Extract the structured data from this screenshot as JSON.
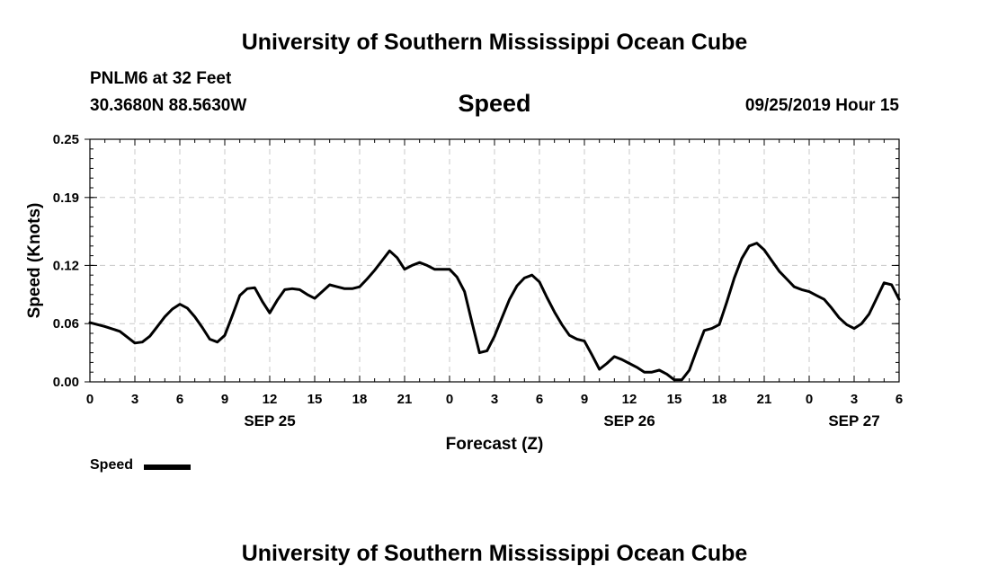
{
  "header": {
    "title": "University of Southern Mississippi Ocean Cube",
    "station": "PNLM6 at 32 Feet",
    "location": "30.3680N 88.5630W",
    "variable": "Speed",
    "timestamp": "09/25/2019 Hour 15"
  },
  "footer": {
    "title": "University of Southern Mississippi Ocean Cube"
  },
  "legend": {
    "label": "Speed",
    "color": "#000000"
  },
  "chart_data": {
    "type": "line",
    "title": "Speed",
    "xlabel": "Forecast (Z)",
    "ylabel": "Speed (Knots)",
    "xlim": [
      0,
      54
    ],
    "ylim": [
      0.0,
      0.25
    ],
    "grid": true,
    "x_ticks": [
      0,
      3,
      6,
      9,
      12,
      15,
      18,
      21,
      24,
      27,
      30,
      33,
      36,
      39,
      42,
      45,
      48,
      51,
      54
    ],
    "x_tick_labels": [
      "0",
      "3",
      "6",
      "9",
      "12",
      "15",
      "18",
      "21",
      "0",
      "3",
      "6",
      "9",
      "12",
      "15",
      "18",
      "21",
      "0",
      "3",
      "6"
    ],
    "y_ticks": [
      0.0,
      0.06,
      0.12,
      0.19,
      0.25
    ],
    "y_tick_labels": [
      "0.00",
      "0.06",
      "0.12",
      "0.19",
      "0.25"
    ],
    "date_labels": [
      {
        "x": 12,
        "label": "SEP 25"
      },
      {
        "x": 36,
        "label": "SEP 26"
      },
      {
        "x": 51,
        "label": "SEP 27"
      }
    ],
    "series": [
      {
        "name": "Speed",
        "color": "#000000",
        "x": [
          0,
          1,
          2,
          2.5,
          3,
          3.5,
          4,
          4.5,
          5,
          5.5,
          6,
          6.5,
          7,
          7.5,
          8,
          8.5,
          9,
          9.5,
          10,
          10.5,
          11,
          11.5,
          12,
          12.5,
          13,
          13.5,
          14,
          14.5,
          15,
          15.5,
          16,
          16.5,
          17,
          17.5,
          18,
          18.5,
          19,
          19.5,
          20,
          20.5,
          21,
          21.5,
          22,
          22.5,
          23,
          23.5,
          24,
          24.5,
          25,
          25.5,
          26,
          26.5,
          27,
          27.5,
          28,
          28.5,
          29,
          29.5,
          30,
          30.5,
          31,
          31.5,
          32,
          32.5,
          33,
          33.5,
          34,
          34.5,
          35,
          35.5,
          36,
          36.5,
          37,
          37.5,
          38,
          38.5,
          39,
          39.5,
          40,
          40.5,
          41,
          41.5,
          42,
          42.5,
          43,
          43.5,
          44,
          44.5,
          45,
          45.5,
          46,
          46.5,
          47,
          47.5,
          48,
          48.5,
          49,
          49.5,
          50,
          50.5,
          51,
          51.5,
          52,
          52.5,
          53,
          53.5,
          54
        ],
        "values": [
          0.061,
          0.057,
          0.052,
          0.046,
          0.04,
          0.041,
          0.047,
          0.057,
          0.067,
          0.075,
          0.08,
          0.076,
          0.067,
          0.056,
          0.044,
          0.041,
          0.048,
          0.068,
          0.089,
          0.096,
          0.097,
          0.083,
          0.071,
          0.084,
          0.095,
          0.096,
          0.095,
          0.09,
          0.086,
          0.093,
          0.1,
          0.098,
          0.096,
          0.096,
          0.098,
          0.106,
          0.115,
          0.125,
          0.135,
          0.128,
          0.116,
          0.12,
          0.123,
          0.12,
          0.116,
          0.116,
          0.116,
          0.108,
          0.093,
          0.061,
          0.03,
          0.032,
          0.047,
          0.066,
          0.085,
          0.099,
          0.107,
          0.11,
          0.103,
          0.087,
          0.072,
          0.059,
          0.048,
          0.044,
          0.042,
          0.028,
          0.013,
          0.019,
          0.026,
          0.023,
          0.019,
          0.015,
          0.01,
          0.01,
          0.012,
          0.008,
          0.002,
          0.002,
          0.012,
          0.033,
          0.053,
          0.055,
          0.059,
          0.082,
          0.107,
          0.127,
          0.14,
          0.143,
          0.136,
          0.125,
          0.114,
          0.106,
          0.098,
          0.095,
          0.093,
          0.089,
          0.085,
          0.076,
          0.066,
          0.059,
          0.055,
          0.06,
          0.07,
          0.086,
          0.102,
          0.1,
          0.085
        ]
      }
    ]
  }
}
